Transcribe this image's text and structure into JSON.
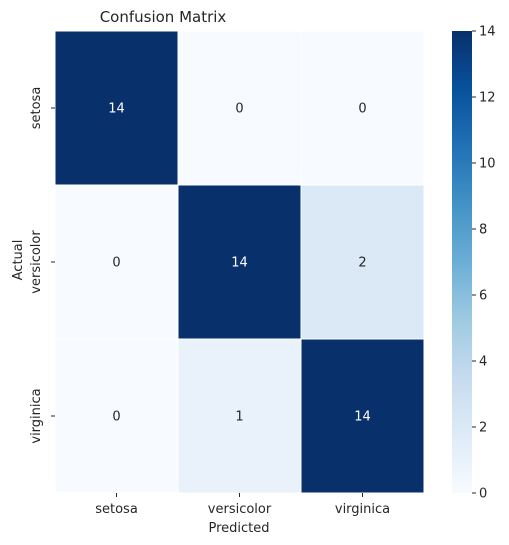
{
  "chart_data": {
    "type": "heatmap",
    "title": "Confusion Matrix",
    "xlabel": "Predicted",
    "ylabel": "Actual",
    "x_categories": [
      "setosa",
      "versicolor",
      "virginica"
    ],
    "y_categories": [
      "setosa",
      "versicolor",
      "virginica"
    ],
    "values": [
      [
        14,
        0,
        0
      ],
      [
        0,
        14,
        2
      ],
      [
        0,
        1,
        14
      ]
    ],
    "colormap": "Blues",
    "color_low": "#f7fbff",
    "color_high": "#08306b",
    "vmin": 0,
    "vmax": 14,
    "colorbar_ticks": [
      "0",
      "2",
      "4",
      "6",
      "8",
      "10",
      "12",
      "14"
    ],
    "annotations": true,
    "grid": false,
    "colorbar_position": "right"
  }
}
